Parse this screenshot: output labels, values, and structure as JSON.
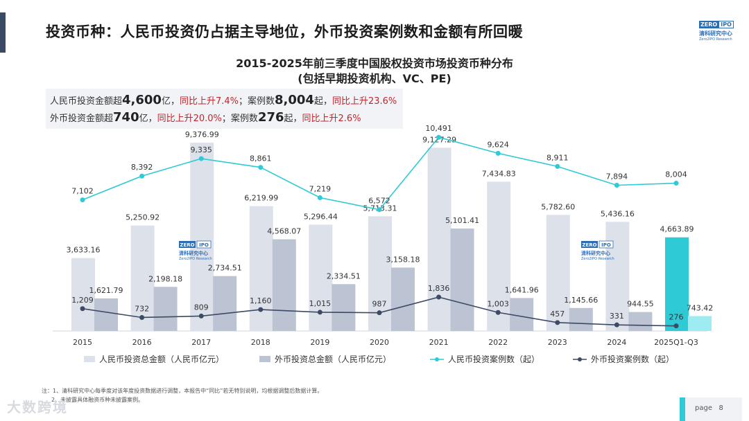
{
  "header": {
    "title": "投资币种：人民币投资仍占据主导地位，外币投资案例数和金额有所回暖",
    "logo": {
      "zero": "ZERO",
      "ipo": "IPO",
      "cn": "清科研究中心",
      "en": "Zero2IPO Research"
    }
  },
  "summary": {
    "row1": {
      "p1": "人民币投资金额超",
      "v1": "4,600",
      "p2": "亿，",
      "r1": "同比上升7.4%",
      "p3": "；案例数",
      "v2": "8,004",
      "p4": "起，",
      "r2": "同比上升23.6%"
    },
    "row2": {
      "p1": "外币投资金额超",
      "v1": "740",
      "p2": "亿，",
      "r1": "同比上升20.0%",
      "p3": "；案例数",
      "v2": "276",
      "p4": "起，",
      "r2": "同比上升2.6%"
    }
  },
  "chart_data": {
    "type": "bar+line",
    "title": "2015-2025年前三季度中国股权投资市场投资币种分布",
    "subtitle": "(包括早期投资机构、VC、PE)",
    "categories": [
      "2015",
      "2016",
      "2017",
      "2018",
      "2019",
      "2020",
      "2021",
      "2022",
      "2023",
      "2024",
      "2025Q1-Q3"
    ],
    "series": [
      {
        "name": "人民币投资总金额（人民币亿元）",
        "kind": "bar",
        "color": "#dde1ea",
        "highlight": "#2ecad6",
        "values": [
          3633.16,
          5250.92,
          9376.99,
          6219.99,
          5296.44,
          5713.31,
          9127.29,
          7434.83,
          5782.6,
          5436.16,
          4663.89
        ],
        "labels": [
          "3,633.16",
          "5,250.92",
          "9,376.99",
          "6,219.99",
          "5,296.44",
          "5,713.31",
          "9,127.29",
          "7,434.83",
          "5,782.60",
          "5,436.16",
          "4,663.89"
        ]
      },
      {
        "name": "外币投资总金额（人民币亿元）",
        "kind": "bar",
        "color": "#bcc4d4",
        "highlight": "#9eecf2",
        "values": [
          1621.79,
          2198.18,
          2734.51,
          4568.07,
          2334.51,
          3158.18,
          5101.41,
          1641.96,
          1145.66,
          944.55,
          743.42
        ],
        "labels": [
          "1,621.79",
          "2,198.18",
          "2,734.51",
          "4,568.07",
          "2,334.51",
          "3,158.18",
          "5,101.41",
          "1,641.96",
          "1,145.66",
          "944.55",
          "743.42"
        ]
      },
      {
        "name": "人民币投资案例数（起）",
        "kind": "line",
        "color": "#2ecad6",
        "values": [
          7102,
          8392,
          9335,
          8861,
          7219,
          6572,
          10491,
          9624,
          8911,
          7894,
          8004
        ],
        "labels": [
          "7,102",
          "8,392",
          "9,335",
          "8,861",
          "7,219",
          "6,572",
          "10,491",
          "9,624",
          "8,911",
          "7,894",
          "8,004"
        ]
      },
      {
        "name": "外币投资案例数（起）",
        "kind": "line",
        "color": "#3d4a63",
        "values": [
          1209,
          732,
          809,
          1160,
          1015,
          987,
          1836,
          1003,
          457,
          331,
          276
        ],
        "labels": [
          "1,209",
          "732",
          "809",
          "1,160",
          "1,015",
          "987",
          "1,836",
          "1,003",
          "457",
          "331",
          "276"
        ]
      }
    ],
    "ylim_amount": [
      0,
      10000
    ],
    "ylim_cases": [
      0,
      12000
    ]
  },
  "footnote": {
    "line1": "注：1、清科研究中心每季度对该年度投资数据进行调整，本报告中“同比”若无特别说明，均根据调整后数据计算。",
    "line2": "2、未披露具体融资币种未披露案例。"
  },
  "watermark": "大数跨境",
  "page": {
    "label": "page",
    "number": "8"
  }
}
